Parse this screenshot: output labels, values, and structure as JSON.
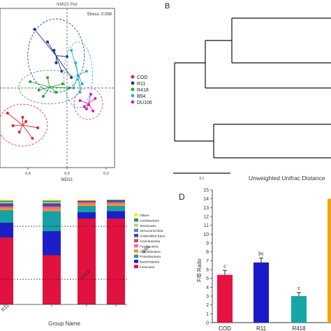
{
  "panels": {
    "a": {
      "title": "NMDS Plot",
      "stress_label": "Stress:  0.099",
      "xlabel": "MDS1",
      "x_ticks": [
        "0.4",
        "0.0",
        "0.2"
      ],
      "legend": [
        {
          "label": "COD",
          "color": "#e8202a"
        },
        {
          "label": "R11",
          "color": "#19328f"
        },
        {
          "label": "R418",
          "color": "#22a62d"
        },
        {
          "label": "B94",
          "color": "#20b3cf"
        },
        {
          "label": "DU106",
          "color": "#d81fb7"
        }
      ]
    },
    "b": {
      "letter": "B",
      "scale_label": "0.1",
      "caption": "Unweighted Unifrac Distance"
    },
    "c": {
      "xlabel": "Group Name",
      "legend": [
        {
          "label": "Others",
          "color": "#f7ec3a"
        },
        {
          "label": "Acidobacteria",
          "color": "#2c8a7a"
        },
        {
          "label": "Tenericutes",
          "color": "#b9d86a"
        },
        {
          "label": "Verrucomicrobia",
          "color": "#5b7fcb"
        },
        {
          "label": "Unidentified Bacteria",
          "color": "#3c4a9a"
        },
        {
          "label": "Actinobacteria",
          "color": "#cc4a6a"
        },
        {
          "label": "Fusobacteria",
          "color": "#e96fa5"
        },
        {
          "label": "Cyanobacteria",
          "color": "#f0922c"
        },
        {
          "label": "Proteobacteria",
          "color": "#17a0a6"
        },
        {
          "label": "Bacteroidetes",
          "color": "#1c1fc9"
        },
        {
          "label": "Firmicutes",
          "color": "#e1123f"
        }
      ]
    },
    "d": {
      "letter": "D",
      "ylabel": "F/B Ratio",
      "y_ticks": [
        "0",
        "1",
        "2",
        "3",
        "4",
        "5",
        "6",
        "7",
        "8",
        "9",
        "10",
        "11",
        "12",
        "13",
        "14",
        "15"
      ]
    }
  },
  "chart_data": [
    {
      "type": "scatter",
      "title": "NMDS Plot",
      "xlabel": "MDS1",
      "annotation": "Stress:  0.099",
      "series": [
        {
          "name": "COD",
          "color": "#e8202a",
          "x": [
            -0.55,
            -0.5,
            -0.44,
            -0.38,
            -0.32,
            -0.27,
            -0.41
          ],
          "y": [
            -0.12,
            -0.18,
            -0.21,
            -0.16,
            -0.24,
            -0.19,
            -0.14
          ]
        },
        {
          "name": "R11",
          "color": "#19328f",
          "x": [
            -0.3,
            -0.18,
            -0.1,
            -0.05,
            0.0,
            0.04,
            -0.12
          ],
          "y": [
            0.28,
            0.22,
            0.12,
            0.08,
            0.15,
            0.05,
            0.18
          ]
        },
        {
          "name": "R418",
          "color": "#22a62d",
          "x": [
            -0.34,
            -0.26,
            -0.18,
            -0.1,
            -0.04,
            0.02,
            -0.22
          ],
          "y": [
            0.03,
            -0.01,
            0.05,
            -0.02,
            0.02,
            0.0,
            -0.04
          ]
        },
        {
          "name": "B94",
          "color": "#20b3cf",
          "x": [
            0.04,
            0.08,
            0.1,
            0.14,
            0.18,
            0.12,
            0.06
          ],
          "y": [
            0.18,
            0.12,
            0.06,
            0.02,
            0.08,
            -0.02,
            0.0
          ]
        },
        {
          "name": "DU106",
          "color": "#d81fb7",
          "x": [
            0.12,
            0.16,
            0.2,
            0.24,
            0.26,
            0.22,
            0.18
          ],
          "y": [
            -0.06,
            -0.09,
            -0.08,
            -0.11,
            -0.05,
            -0.03,
            -0.1
          ]
        }
      ]
    },
    {
      "type": "bar",
      "stacked": true,
      "xlabel": "Group Name",
      "categories": [
        "R11",
        "R418",
        "B94",
        "DU106"
      ],
      "series": [
        {
          "name": "Firmicutes",
          "values": [
            0.64,
            0.47,
            0.82,
            0.82
          ]
        },
        {
          "name": "Bacteroidetes",
          "values": [
            0.14,
            0.23,
            0.06,
            0.07
          ]
        },
        {
          "name": "Proteobacteria",
          "values": [
            0.12,
            0.19,
            0.06,
            0.05
          ]
        },
        {
          "name": "Cyanobacteria",
          "values": [
            0.02,
            0.02,
            0.02,
            0.02
          ]
        },
        {
          "name": "Fusobacteria",
          "values": [
            0.01,
            0.02,
            0.01,
            0.01
          ]
        },
        {
          "name": "Actinobacteria",
          "values": [
            0.01,
            0.01,
            0.01,
            0.01
          ]
        },
        {
          "name": "Unidentified Bacteria",
          "values": [
            0.02,
            0.02,
            0.01,
            0.01
          ]
        },
        {
          "name": "Verrucomicrobia",
          "values": [
            0.01,
            0.01,
            0.0,
            0.0
          ]
        },
        {
          "name": "Tenericutes",
          "values": [
            0.01,
            0.01,
            0.0,
            0.0
          ]
        },
        {
          "name": "Acidobacteria",
          "values": [
            0.01,
            0.01,
            0.0,
            0.01
          ]
        },
        {
          "name": "Others",
          "values": [
            0.01,
            0.01,
            0.01,
            0.0
          ]
        }
      ]
    },
    {
      "type": "bar",
      "ylabel": "F/B Ratio",
      "ylim": [
        0,
        15
      ],
      "categories": [
        "COD",
        "R11",
        "R418"
      ],
      "values": [
        5.4,
        6.8,
        3.0
      ],
      "errors": [
        0.5,
        0.5,
        0.4
      ],
      "significance": [
        "c",
        "bc",
        "c"
      ],
      "colors": [
        "#e6123f",
        "#1a1ac8",
        "#14a7a5"
      ],
      "extra_bar": {
        "value": 14.0,
        "color": "#f4a20c"
      }
    }
  ]
}
